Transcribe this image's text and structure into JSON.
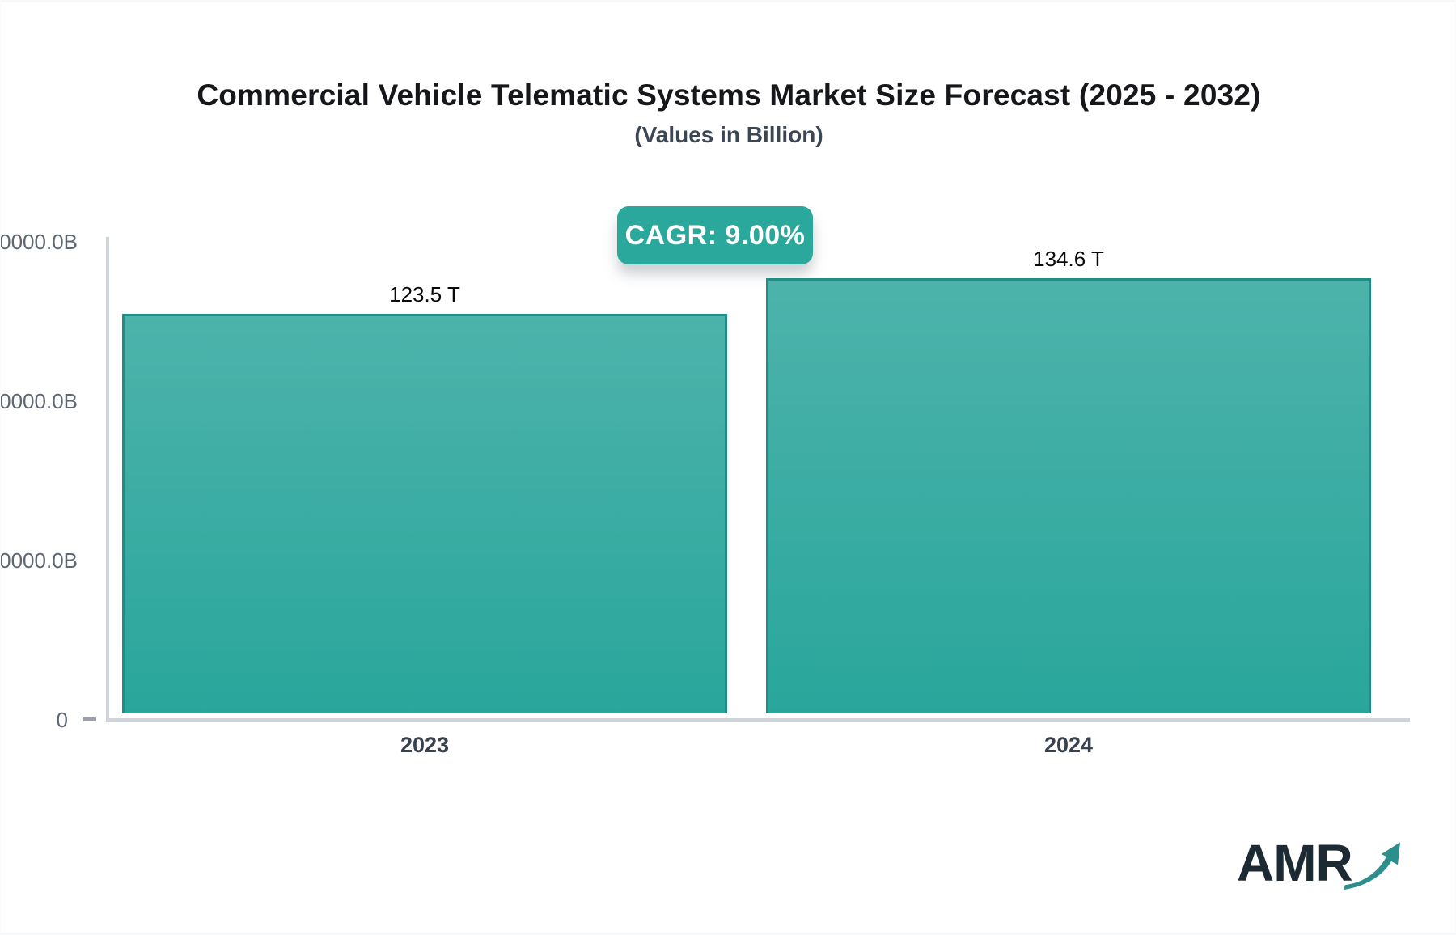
{
  "page": {
    "background": "#ffffff",
    "edge_color": "#f7f8fa"
  },
  "header": {
    "title": "Commercial Vehicle Telematic Systems Market Size Forecast (2025 - 2032)",
    "subtitle": "(Values in Billion)"
  },
  "cagr_badge": {
    "label": "CAGR: 9.00%",
    "background": "#2aa89c",
    "text_color": "#ffffff"
  },
  "chart_data": {
    "type": "bar",
    "title": "Commercial Vehicle Telematic Systems Market Size Forecast (2025 - 2032)",
    "subtitle": "(Values in Billion)",
    "categories": [
      "2023",
      "2024"
    ],
    "values": [
      123.5,
      134.6
    ],
    "value_unit": "T",
    "value_labels": [
      "123.5 T",
      "134.6 T"
    ],
    "cagr": "9.00%",
    "xlabel": "",
    "ylabel": "",
    "y_tick_labels": [
      "0000.0B",
      "0000.0B",
      "0000.0B",
      "0"
    ],
    "ylim": [
      0,
      158
    ],
    "grid": false,
    "legend": false,
    "bar_color_top": "#4db3ab",
    "bar_color_bottom": "#29a69b",
    "bar_border_color": "#1f8e86",
    "axis_color": "#cfd3da",
    "y_tick_text_color": "#5d6673",
    "x_tick_text_color": "#39414f"
  },
  "logo": {
    "text": "AMR",
    "text_color": "#1b2a33",
    "arrow_color": "#2d8f8d"
  }
}
